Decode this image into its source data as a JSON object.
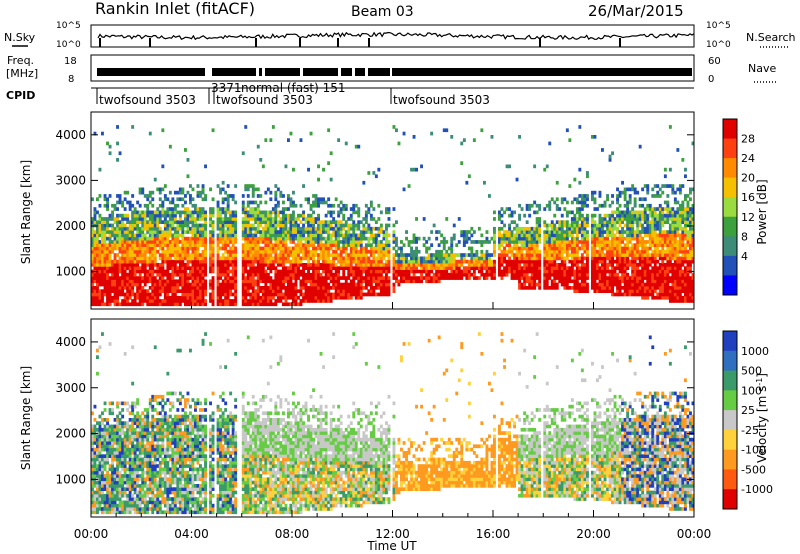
{
  "header": {
    "station": "Rankin Inlet (fitACF)",
    "beam": "Beam 03",
    "date": "26/Mar/2015"
  },
  "noise_panel": {
    "left_label": "N.Sky",
    "right_label": "N.Search",
    "y_top": "10^5",
    "y_bottom": "10^0"
  },
  "freq_panel": {
    "left_label_1": "Freq.",
    "left_label_2": "[MHz]",
    "right_label": "Nave",
    "left_ticks": [
      "18",
      "8"
    ],
    "right_ticks": [
      "60",
      "0"
    ]
  },
  "cpid": {
    "label": "CPID",
    "segments": [
      {
        "text": "twofsound 3503",
        "start_hour": 0.0
      },
      {
        "text": "3371",
        "start_hour": 4.6
      },
      {
        "text": "normal (fast) 151",
        "start_hour": 5.25
      },
      {
        "text": "twofsound 3503",
        "start_hour": 4.9
      },
      {
        "text": "twofsound 3503",
        "start_hour": 11.9
      }
    ]
  },
  "x_axis": {
    "label": "Time UT",
    "ticks": [
      "00:00",
      "04:00",
      "08:00",
      "12:00",
      "16:00",
      "20:00",
      "00:00"
    ]
  },
  "chart_data": [
    {
      "type": "heatmap",
      "quantity": "Power",
      "ylabel": "Slant Range [km]",
      "xlabel": "",
      "xlim_hours": [
        0,
        24
      ],
      "ylim": [
        180,
        4500
      ],
      "yticks": [
        1000,
        2000,
        3000,
        4000
      ],
      "colorbar": {
        "label": "Power [dB]",
        "ticks": [
          "28",
          "24",
          "20",
          "16",
          "12",
          "8",
          "4"
        ],
        "colors": [
          "#e00000",
          "#ff4010",
          "#ff8c00",
          "#f5c000",
          "#9adc40",
          "#3ca03c",
          "#3c8c78",
          "#2050b8",
          "#0000ff"
        ]
      },
      "dominant_echo_band_km": [
        400,
        2400
      ]
    },
    {
      "type": "heatmap",
      "quantity": "Velocity",
      "ylabel": "Slant Range [km]",
      "xlabel": "Time UT",
      "xlim_hours": [
        0,
        24
      ],
      "ylim": [
        180,
        4500
      ],
      "yticks": [
        1000,
        2000,
        3000,
        4000
      ],
      "colorbar": {
        "label": "Velocity [m s^-1]",
        "ticks": [
          "1000",
          "500",
          "100",
          "25",
          "-25",
          "-100",
          "-500",
          "-1000"
        ],
        "colors": [
          "#2040c0",
          "#2f6fbf",
          "#3b9a6a",
          "#66cc44",
          "#c8c8c8",
          "#ffd23c",
          "#ff9a20",
          "#ff5a10",
          "#e00000"
        ]
      },
      "dominant_echo_band_km": [
        400,
        2400
      ]
    }
  ]
}
